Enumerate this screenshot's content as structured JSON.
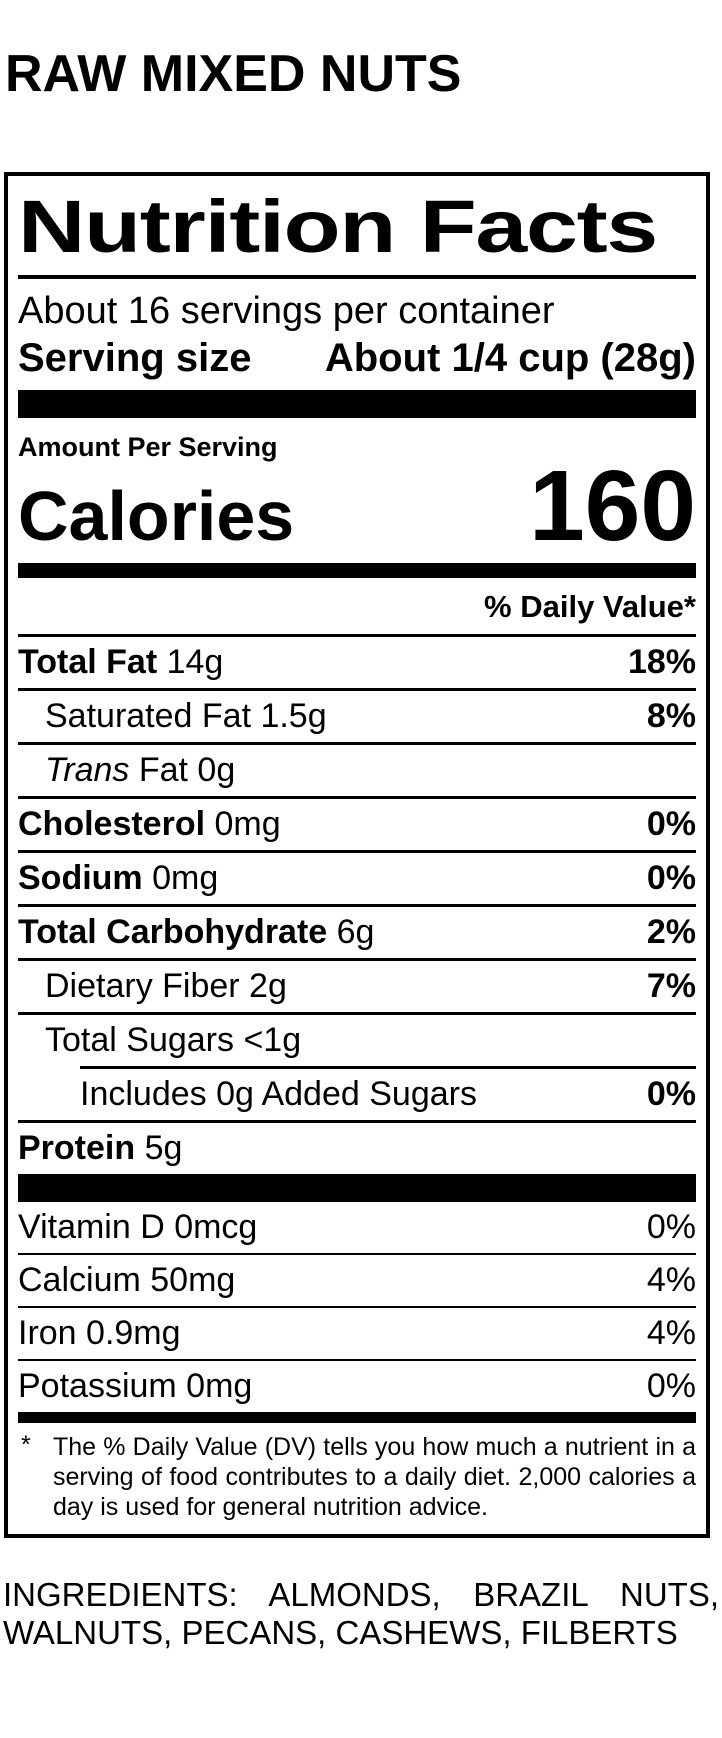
{
  "colors": {
    "text": "#000000",
    "background": "#ffffff"
  },
  "page": {
    "product_title": "RAW MIXED NUTS"
  },
  "label": {
    "title": "Nutrition Facts",
    "servings_per_container": "About 16 servings per container",
    "serving_size_label": "Serving size",
    "serving_size_value": "About 1/4 cup (28g)",
    "amount_per_serving": "Amount Per Serving",
    "calories_label": "Calories",
    "calories_value": "160",
    "daily_value_header": "% Daily Value*",
    "nutrients": [
      {
        "bold": "Total Fat",
        "text": " 14g",
        "dv": "18%",
        "dv_bold": true,
        "indent": 0
      },
      {
        "text": "Saturated Fat 1.5g",
        "dv": "8%",
        "dv_bold": true,
        "indent": 1
      },
      {
        "italic": "Trans",
        "text": " Fat 0g",
        "dv": "",
        "indent": 1
      },
      {
        "bold": "Cholesterol",
        "text": " 0mg",
        "dv": "0%",
        "dv_bold": true,
        "indent": 0
      },
      {
        "bold": "Sodium",
        "text": " 0mg",
        "dv": "0%",
        "dv_bold": true,
        "indent": 0
      },
      {
        "bold": "Total Carbohydrate",
        "text": " 6g",
        "dv": "2%",
        "dv_bold": true,
        "indent": 0
      },
      {
        "text": "Dietary Fiber 2g",
        "dv": "7%",
        "dv_bold": true,
        "indent": 1
      },
      {
        "text": "Total Sugars <1g",
        "dv": "",
        "indent": 1
      },
      {
        "text": "Includes 0g Added Sugars",
        "dv": "0%",
        "dv_bold": true,
        "indent": 2,
        "inset_rule": true
      },
      {
        "bold": "Protein",
        "text": " 5g",
        "dv": "",
        "indent": 0
      }
    ],
    "vitamins": [
      {
        "text": "Vitamin D 0mcg",
        "dv": "0%"
      },
      {
        "text": "Calcium 50mg",
        "dv": "4%"
      },
      {
        "text": "Iron 0.9mg",
        "dv": "4%"
      },
      {
        "text": "Potassium 0mg",
        "dv": "0%"
      }
    ],
    "footnote_marker": "*",
    "footnote_text": "The % Daily Value (DV) tells you how much a nutrient in a serving of food contributes to a daily diet. 2,000 calories a day is used for general nutrition advice."
  },
  "ingredients_text": "INGREDIENTS: ALMONDS, BRAZIL NUTS, WALNUTS, PECANS, CASHEWS, FILBERTS"
}
